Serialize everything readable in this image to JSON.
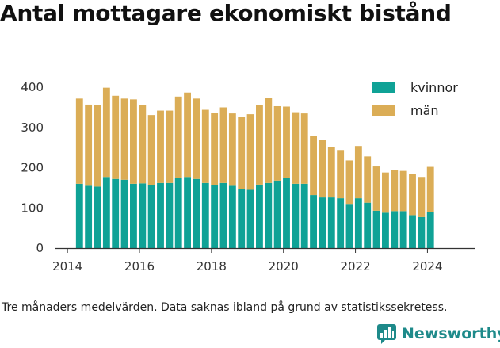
{
  "title": "Antal mottagare ekonomiskt bistånd",
  "footnote": "Tre månaders medelvärden. Data saknas ibland på grund av statistikssekretess.",
  "brand": {
    "name": "Newsworthy",
    "icon": "newsworthy-logo-icon"
  },
  "colors": {
    "kvinnor": "#0fa296",
    "man": "#dbad56",
    "axis": "#333333",
    "grid": "#cfcfcf"
  },
  "chart_data": {
    "type": "bar",
    "stacked": true,
    "x_type": "date",
    "x_ticks": [
      "2014",
      "2016",
      "2018",
      "2020",
      "2022",
      "2024"
    ],
    "xlim": [
      "2013-09-01",
      "2025-05-01"
    ],
    "ylim": [
      0,
      420
    ],
    "y_ticks": [
      0,
      100,
      200,
      300,
      400
    ],
    "grid": false,
    "legend_position": "top-right",
    "x": [
      "2014-05",
      "2014-08",
      "2014-11",
      "2015-02",
      "2015-05",
      "2015-08",
      "2015-11",
      "2016-02",
      "2016-05",
      "2016-08",
      "2016-11",
      "2017-02",
      "2017-05",
      "2017-08",
      "2017-11",
      "2018-02",
      "2018-05",
      "2018-08",
      "2018-11",
      "2019-02",
      "2019-05",
      "2019-08",
      "2019-11",
      "2020-02",
      "2020-05",
      "2020-08",
      "2020-11",
      "2021-02",
      "2021-05",
      "2021-08",
      "2021-11",
      "2022-02",
      "2022-05",
      "2022-08",
      "2022-11",
      "2023-02",
      "2023-05",
      "2023-08",
      "2023-11",
      "2024-02"
    ],
    "series": [
      {
        "name": "kvinnor",
        "values": [
          160,
          155,
          153,
          177,
          172,
          170,
          160,
          161,
          156,
          162,
          162,
          175,
          177,
          172,
          162,
          157,
          162,
          155,
          147,
          145,
          158,
          162,
          168,
          174,
          160,
          160,
          132,
          126,
          126,
          124,
          110,
          124,
          113,
          93,
          88,
          92,
          92,
          82,
          77,
          90
        ]
      },
      {
        "name": "män",
        "values": [
          212,
          202,
          202,
          222,
          207,
          202,
          210,
          195,
          175,
          180,
          180,
          202,
          210,
          200,
          182,
          180,
          188,
          180,
          180,
          188,
          198,
          212,
          185,
          178,
          178,
          175,
          148,
          143,
          125,
          120,
          108,
          130,
          115,
          110,
          100,
          102,
          100,
          102,
          100,
          112
        ]
      }
    ]
  }
}
